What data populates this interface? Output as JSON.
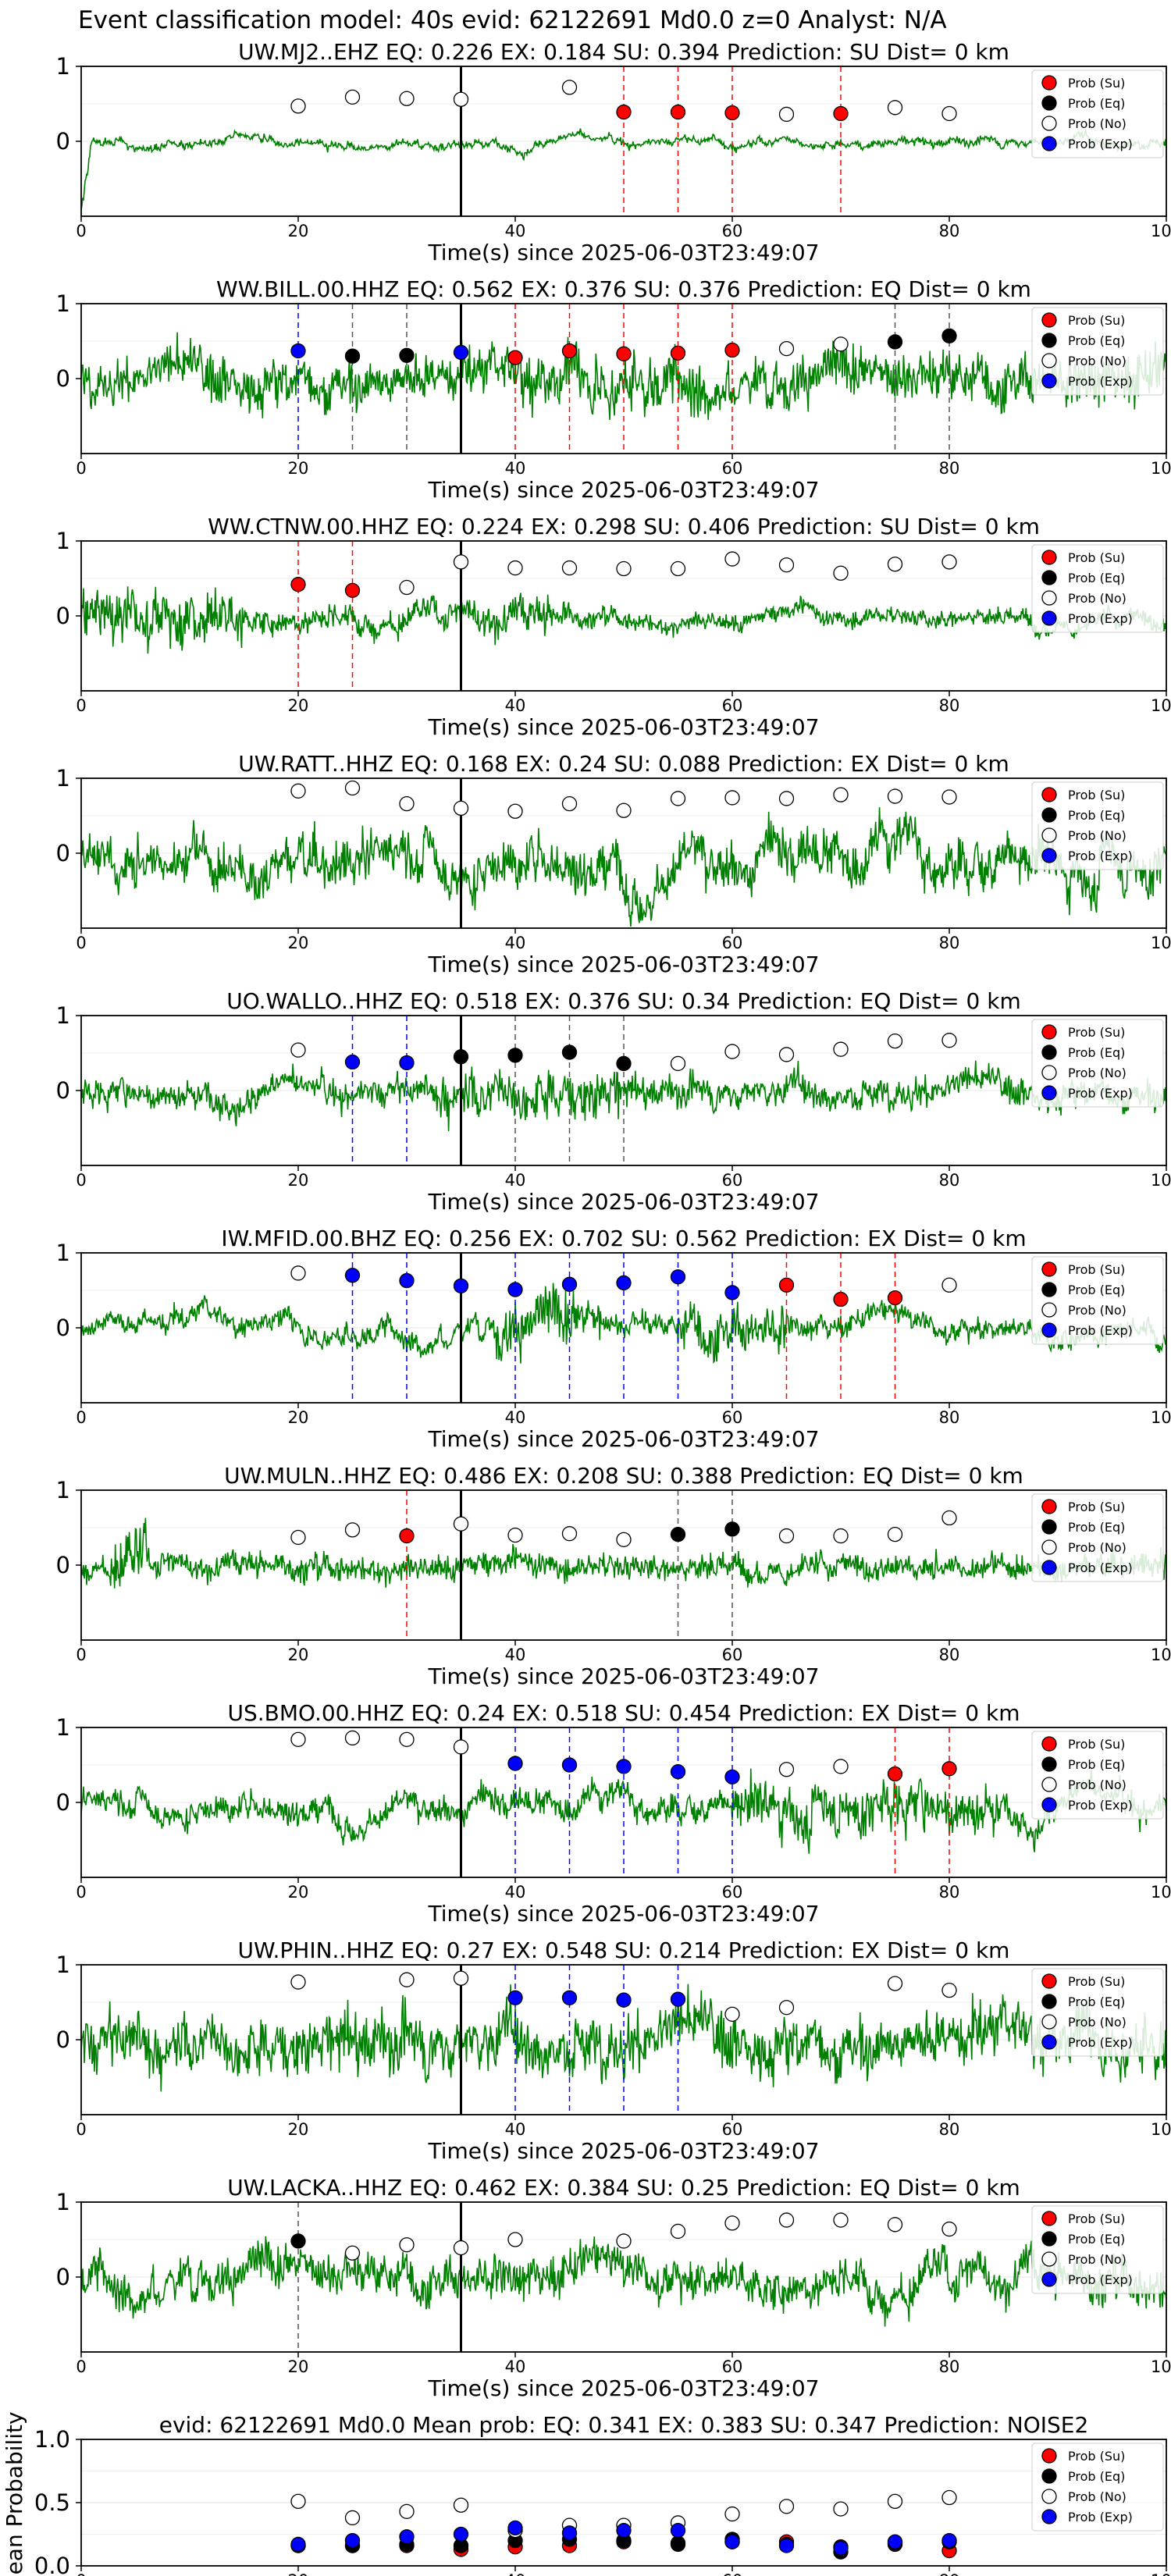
{
  "figure": {
    "title": "Event classification model: 40s evid: 62122691 Md0.0 z=0 Analyst: N/A"
  },
  "legend_labels": [
    "Prob (Su)",
    "Prob (Eq)",
    "Prob (No)",
    "Prob (Exp)"
  ],
  "colors": {
    "su": "#ff0000",
    "eq": "#000000",
    "no": "#ffffff",
    "exp": "#0000ff",
    "waveform": "#008000",
    "origin_line": "#000000"
  },
  "chart_data": [
    {
      "type": "line",
      "title": "UW.MJ2..EHZ   EQ: 0.226  EX: 0.184  SU: 0.394   Prediction: SU    Dist= 0 km",
      "xlabel": "Time(s) since 2025-06-03T23:49:07",
      "xlim": [
        0,
        100
      ],
      "x_ticks": [
        0,
        20,
        40,
        60,
        80,
        100
      ],
      "y_ticks": [
        0,
        1
      ],
      "origin_time": 35,
      "series": [
        {
          "kind": "Su",
          "x": [
            50,
            55,
            60,
            70
          ],
          "y": [
            0.39,
            0.39,
            0.38,
            0.37
          ]
        },
        {
          "kind": "Eq",
          "x": [],
          "y": []
        },
        {
          "kind": "No",
          "x": [
            20,
            25,
            30,
            35,
            45,
            65,
            75,
            80
          ],
          "y": [
            0.47,
            0.59,
            0.57,
            0.56,
            0.72,
            0.36,
            0.45,
            0.37
          ]
        },
        {
          "kind": "Exp",
          "x": [],
          "y": []
        }
      ],
      "vlines": [
        {
          "x": 50,
          "kind": "Su"
        },
        {
          "x": 55,
          "kind": "Su"
        },
        {
          "x": 60,
          "kind": "Su"
        },
        {
          "x": 70,
          "kind": "Su"
        }
      ]
    },
    {
      "type": "line",
      "title": "WW.BILL.00.HHZ   EQ: 0.562  EX: 0.376  SU: 0.376   Prediction: EQ    Dist= 0 km",
      "xlabel": "Time(s) since 2025-06-03T23:49:07",
      "xlim": [
        0,
        100
      ],
      "x_ticks": [
        0,
        20,
        40,
        60,
        80,
        100
      ],
      "y_ticks": [
        0,
        1
      ],
      "origin_time": 35,
      "series": [
        {
          "kind": "Su",
          "x": [
            40,
            45,
            50,
            55,
            60
          ],
          "y": [
            0.28,
            0.37,
            0.33,
            0.34,
            0.38
          ]
        },
        {
          "kind": "Eq",
          "x": [
            25,
            30,
            75,
            80
          ],
          "y": [
            0.3,
            0.31,
            0.49,
            0.57
          ]
        },
        {
          "kind": "No",
          "x": [
            65,
            70
          ],
          "y": [
            0.4,
            0.46
          ]
        },
        {
          "kind": "Exp",
          "x": [
            20,
            35
          ],
          "y": [
            0.37,
            0.35
          ]
        }
      ],
      "vlines": [
        {
          "x": 20,
          "kind": "Exp"
        },
        {
          "x": 25,
          "kind": "Eq"
        },
        {
          "x": 30,
          "kind": "Eq"
        },
        {
          "x": 40,
          "kind": "Su"
        },
        {
          "x": 45,
          "kind": "Su"
        },
        {
          "x": 50,
          "kind": "Su"
        },
        {
          "x": 55,
          "kind": "Su"
        },
        {
          "x": 60,
          "kind": "Su"
        },
        {
          "x": 75,
          "kind": "Eq"
        },
        {
          "x": 80,
          "kind": "Eq"
        }
      ]
    },
    {
      "type": "line",
      "title": "WW.CTNW.00.HHZ   EQ: 0.224  EX: 0.298  SU: 0.406   Prediction: SU    Dist= 0 km",
      "xlabel": "Time(s) since 2025-06-03T23:49:07",
      "xlim": [
        0,
        100
      ],
      "x_ticks": [
        0,
        20,
        40,
        60,
        80,
        100
      ],
      "y_ticks": [
        0,
        1
      ],
      "origin_time": 35,
      "series": [
        {
          "kind": "Su",
          "x": [
            20,
            25
          ],
          "y": [
            0.42,
            0.34
          ]
        },
        {
          "kind": "Eq",
          "x": [],
          "y": []
        },
        {
          "kind": "No",
          "x": [
            30,
            35,
            40,
            45,
            50,
            55,
            60,
            65,
            70,
            75,
            80
          ],
          "y": [
            0.38,
            0.72,
            0.64,
            0.64,
            0.63,
            0.63,
            0.76,
            0.68,
            0.57,
            0.69,
            0.72
          ]
        },
        {
          "kind": "Exp",
          "x": [],
          "y": []
        }
      ],
      "vlines": [
        {
          "x": 20,
          "kind": "Su"
        },
        {
          "x": 25,
          "kind": "Su"
        }
      ]
    },
    {
      "type": "line",
      "title": "UW.RATT..HHZ   EQ: 0.168  EX: 0.24  SU: 0.088   Prediction: EX    Dist= 0 km",
      "xlabel": "Time(s) since 2025-06-03T23:49:07",
      "xlim": [
        0,
        100
      ],
      "x_ticks": [
        0,
        20,
        40,
        60,
        80,
        100
      ],
      "y_ticks": [
        0,
        1
      ],
      "origin_time": 35,
      "series": [
        {
          "kind": "Su",
          "x": [],
          "y": []
        },
        {
          "kind": "Eq",
          "x": [],
          "y": []
        },
        {
          "kind": "No",
          "x": [
            20,
            25,
            30,
            35,
            40,
            45,
            50,
            55,
            60,
            65,
            70,
            75,
            80
          ],
          "y": [
            0.83,
            0.87,
            0.66,
            0.6,
            0.56,
            0.66,
            0.57,
            0.73,
            0.74,
            0.73,
            0.78,
            0.76,
            0.75
          ]
        },
        {
          "kind": "Exp",
          "x": [],
          "y": []
        }
      ],
      "vlines": []
    },
    {
      "type": "line",
      "title": "UO.WALLO..HHZ   EQ: 0.518  EX: 0.376  SU: 0.34   Prediction: EQ    Dist= 0 km",
      "xlabel": "Time(s) since 2025-06-03T23:49:07",
      "xlim": [
        0,
        100
      ],
      "x_ticks": [
        0,
        20,
        40,
        60,
        80,
        100
      ],
      "y_ticks": [
        0,
        1
      ],
      "origin_time": 35,
      "series": [
        {
          "kind": "Su",
          "x": [],
          "y": []
        },
        {
          "kind": "Eq",
          "x": [
            35,
            40,
            45,
            50
          ],
          "y": [
            0.45,
            0.47,
            0.51,
            0.36
          ]
        },
        {
          "kind": "No",
          "x": [
            20,
            55,
            60,
            65,
            70,
            75,
            80
          ],
          "y": [
            0.54,
            0.36,
            0.52,
            0.48,
            0.55,
            0.66,
            0.67
          ]
        },
        {
          "kind": "Exp",
          "x": [
            25,
            30
          ],
          "y": [
            0.38,
            0.37
          ]
        }
      ],
      "vlines": [
        {
          "x": 25,
          "kind": "Exp"
        },
        {
          "x": 30,
          "kind": "Exp"
        },
        {
          "x": 40,
          "kind": "Eq"
        },
        {
          "x": 45,
          "kind": "Eq"
        },
        {
          "x": 50,
          "kind": "Eq"
        }
      ]
    },
    {
      "type": "line",
      "title": "IW.MFID.00.BHZ   EQ: 0.256  EX: 0.702  SU: 0.562   Prediction: EX    Dist= 0 km",
      "xlabel": "Time(s) since 2025-06-03T23:49:07",
      "xlim": [
        0,
        100
      ],
      "x_ticks": [
        0,
        20,
        40,
        60,
        80,
        100
      ],
      "y_ticks": [
        0,
        1
      ],
      "origin_time": 35,
      "series": [
        {
          "kind": "Su",
          "x": [
            65,
            70,
            75
          ],
          "y": [
            0.57,
            0.38,
            0.4
          ]
        },
        {
          "kind": "Eq",
          "x": [],
          "y": []
        },
        {
          "kind": "No",
          "x": [
            20,
            80
          ],
          "y": [
            0.73,
            0.57
          ]
        },
        {
          "kind": "Exp",
          "x": [
            25,
            30,
            35,
            40,
            45,
            50,
            55,
            60
          ],
          "y": [
            0.7,
            0.63,
            0.56,
            0.51,
            0.58,
            0.6,
            0.68,
            0.47
          ]
        }
      ],
      "vlines": [
        {
          "x": 25,
          "kind": "Exp"
        },
        {
          "x": 30,
          "kind": "Exp"
        },
        {
          "x": 40,
          "kind": "Exp"
        },
        {
          "x": 45,
          "kind": "Exp"
        },
        {
          "x": 50,
          "kind": "Exp"
        },
        {
          "x": 55,
          "kind": "Exp"
        },
        {
          "x": 60,
          "kind": "Exp"
        },
        {
          "x": 65,
          "kind": "Su"
        },
        {
          "x": 70,
          "kind": "Su"
        },
        {
          "x": 75,
          "kind": "Su"
        }
      ]
    },
    {
      "type": "line",
      "title": "UW.MULN..HHZ   EQ: 0.486  EX: 0.208  SU: 0.388   Prediction: EQ    Dist= 0 km",
      "xlabel": "Time(s) since 2025-06-03T23:49:07",
      "xlim": [
        0,
        100
      ],
      "x_ticks": [
        0,
        20,
        40,
        60,
        80,
        100
      ],
      "y_ticks": [
        0,
        1
      ],
      "origin_time": 35,
      "series": [
        {
          "kind": "Su",
          "x": [
            30
          ],
          "y": [
            0.39
          ]
        },
        {
          "kind": "Eq",
          "x": [
            55,
            60
          ],
          "y": [
            0.41,
            0.48
          ]
        },
        {
          "kind": "No",
          "x": [
            20,
            25,
            35,
            40,
            45,
            50,
            65,
            70,
            75,
            80
          ],
          "y": [
            0.37,
            0.47,
            0.55,
            0.4,
            0.42,
            0.34,
            0.39,
            0.39,
            0.41,
            0.63
          ]
        },
        {
          "kind": "Exp",
          "x": [],
          "y": []
        }
      ],
      "vlines": [
        {
          "x": 30,
          "kind": "Su"
        },
        {
          "x": 55,
          "kind": "Eq"
        },
        {
          "x": 60,
          "kind": "Eq"
        }
      ]
    },
    {
      "type": "line",
      "title": "US.BMO.00.HHZ   EQ: 0.24  EX: 0.518  SU: 0.454   Prediction: EX    Dist= 0 km",
      "xlabel": "Time(s) since 2025-06-03T23:49:07",
      "xlim": [
        0,
        100
      ],
      "x_ticks": [
        0,
        20,
        40,
        60,
        80,
        100
      ],
      "y_ticks": [
        0,
        1
      ],
      "origin_time": 35,
      "series": [
        {
          "kind": "Su",
          "x": [
            75,
            80
          ],
          "y": [
            0.38,
            0.45
          ]
        },
        {
          "kind": "Eq",
          "x": [],
          "y": []
        },
        {
          "kind": "No",
          "x": [
            20,
            25,
            30,
            35,
            65,
            70
          ],
          "y": [
            0.84,
            0.86,
            0.84,
            0.74,
            0.44,
            0.48
          ]
        },
        {
          "kind": "Exp",
          "x": [
            40,
            45,
            50,
            55,
            60
          ],
          "y": [
            0.52,
            0.5,
            0.48,
            0.41,
            0.34
          ]
        }
      ],
      "vlines": [
        {
          "x": 40,
          "kind": "Exp"
        },
        {
          "x": 45,
          "kind": "Exp"
        },
        {
          "x": 50,
          "kind": "Exp"
        },
        {
          "x": 55,
          "kind": "Exp"
        },
        {
          "x": 60,
          "kind": "Exp"
        },
        {
          "x": 75,
          "kind": "Su"
        },
        {
          "x": 80,
          "kind": "Su"
        }
      ]
    },
    {
      "type": "line",
      "title": "UW.PHIN..HHZ   EQ: 0.27  EX: 0.548  SU: 0.214   Prediction: EX    Dist= 0 km",
      "xlabel": "Time(s) since 2025-06-03T23:49:07",
      "xlim": [
        0,
        100
      ],
      "x_ticks": [
        0,
        20,
        40,
        60,
        80,
        100
      ],
      "y_ticks": [
        0,
        1
      ],
      "origin_time": 35,
      "series": [
        {
          "kind": "Su",
          "x": [],
          "y": []
        },
        {
          "kind": "Eq",
          "x": [],
          "y": []
        },
        {
          "kind": "No",
          "x": [
            20,
            30,
            35,
            60,
            65,
            75,
            80
          ],
          "y": [
            0.77,
            0.8,
            0.82,
            0.34,
            0.43,
            0.75,
            0.66
          ]
        },
        {
          "kind": "Exp",
          "x": [
            40,
            45,
            50,
            55
          ],
          "y": [
            0.56,
            0.56,
            0.53,
            0.54
          ]
        }
      ],
      "vlines": [
        {
          "x": 40,
          "kind": "Exp"
        },
        {
          "x": 45,
          "kind": "Exp"
        },
        {
          "x": 50,
          "kind": "Exp"
        },
        {
          "x": 55,
          "kind": "Exp"
        }
      ]
    },
    {
      "type": "line",
      "title": "UW.LACKA..HHZ   EQ: 0.462  EX: 0.384  SU: 0.25   Prediction: EQ    Dist= 0 km",
      "xlabel": "Time(s) since 2025-06-03T23:49:07",
      "xlim": [
        0,
        100
      ],
      "x_ticks": [
        0,
        20,
        40,
        60,
        80,
        100
      ],
      "y_ticks": [
        0,
        1
      ],
      "origin_time": 35,
      "series": [
        {
          "kind": "Su",
          "x": [],
          "y": []
        },
        {
          "kind": "Eq",
          "x": [
            20
          ],
          "y": [
            0.48
          ]
        },
        {
          "kind": "No",
          "x": [
            25,
            30,
            35,
            40,
            50,
            55,
            60,
            65,
            70,
            75,
            80
          ],
          "y": [
            0.32,
            0.43,
            0.39,
            0.5,
            0.48,
            0.61,
            0.72,
            0.76,
            0.76,
            0.7,
            0.64
          ]
        },
        {
          "kind": "Exp",
          "x": [],
          "y": []
        }
      ],
      "vlines": [
        {
          "x": 20,
          "kind": "Eq"
        }
      ]
    },
    {
      "type": "scatter",
      "title": "evid: 62122691  Md0.0   Mean prob:   EQ: 0.341  EX: 0.383  SU: 0.347   Prediction: NOISE2",
      "ylabel": "Mean Probability",
      "xlim": [
        0,
        100
      ],
      "ylim": [
        0,
        1
      ],
      "x_ticks": [
        0,
        20,
        40,
        60,
        80,
        100
      ],
      "y_ticks": [
        "0.0",
        "0.5",
        "1.0"
      ],
      "grid": true,
      "series": [
        {
          "kind": "Su",
          "x": [
            20,
            25,
            30,
            35,
            40,
            45,
            50,
            55,
            60,
            65,
            70,
            75,
            80
          ],
          "y": [
            0.16,
            0.16,
            0.16,
            0.13,
            0.15,
            0.16,
            0.19,
            0.18,
            0.19,
            0.19,
            0.15,
            0.17,
            0.12
          ]
        },
        {
          "kind": "Eq",
          "x": [
            20,
            25,
            30,
            35,
            40,
            45,
            50,
            55,
            60,
            65,
            70,
            75,
            80
          ],
          "y": [
            0.16,
            0.16,
            0.17,
            0.16,
            0.2,
            0.21,
            0.2,
            0.17,
            0.21,
            0.17,
            0.11,
            0.18,
            0.19
          ]
        },
        {
          "kind": "No",
          "x": [
            20,
            25,
            30,
            35,
            40,
            45,
            50,
            55,
            60,
            65,
            70,
            75,
            80
          ],
          "y": [
            0.51,
            0.38,
            0.43,
            0.48,
            0.28,
            0.32,
            0.32,
            0.34,
            0.41,
            0.47,
            0.45,
            0.51,
            0.54
          ]
        },
        {
          "kind": "Exp",
          "x": [
            20,
            25,
            30,
            35,
            40,
            45,
            50,
            55,
            60,
            65,
            70,
            75,
            80
          ],
          "y": [
            0.17,
            0.2,
            0.23,
            0.25,
            0.3,
            0.26,
            0.28,
            0.28,
            0.19,
            0.16,
            0.14,
            0.19,
            0.2
          ]
        }
      ]
    }
  ]
}
